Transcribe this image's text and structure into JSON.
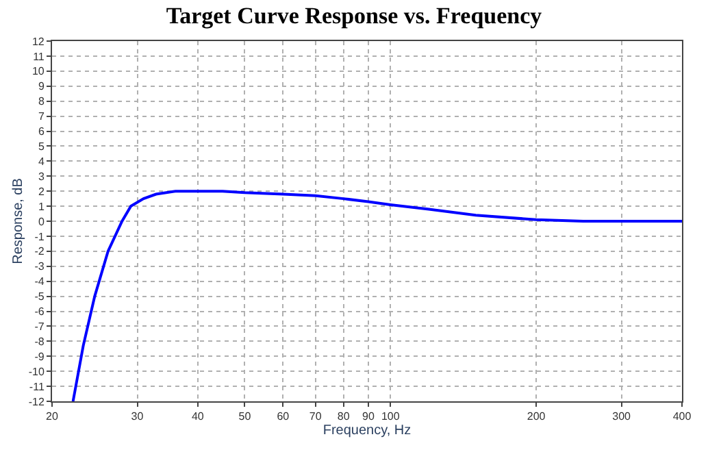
{
  "chart_data": {
    "type": "line",
    "title": "Target Curve Response vs. Frequency",
    "xlabel": "Frequency, Hz",
    "ylabel": "Response, dB",
    "log": "x",
    "grid": true,
    "line_style": "solid",
    "marker": "none",
    "legend": false,
    "xlim": [
      20,
      400
    ],
    "xticks": [
      20,
      30,
      40,
      50,
      60,
      70,
      80,
      90,
      100,
      200,
      300,
      400
    ],
    "ylim": [
      -12,
      12
    ],
    "yticks": [
      -12,
      -11,
      -10,
      -9,
      -8,
      -7,
      -6,
      -5,
      -4,
      -3,
      -2,
      -1,
      0,
      1,
      2,
      3,
      4,
      5,
      6,
      7,
      8,
      9,
      10,
      11,
      12
    ],
    "x": [
      22.1,
      23.2,
      24.5,
      26.1,
      27.9,
      29.1,
      30.9,
      32.8,
      36,
      40,
      45,
      50,
      60,
      70,
      80,
      90,
      100,
      120,
      150,
      200,
      250,
      300,
      400
    ],
    "series": [
      {
        "color": "#0000ff",
        "values": [
          -12,
          -8.3,
          -5,
          -2,
          0,
          1,
          1.5,
          1.8,
          2,
          2,
          2,
          1.9,
          1.8,
          1.7,
          1.5,
          1.3,
          1.1,
          0.8,
          0.4,
          0.1,
          0,
          0,
          0
        ]
      }
    ]
  }
}
